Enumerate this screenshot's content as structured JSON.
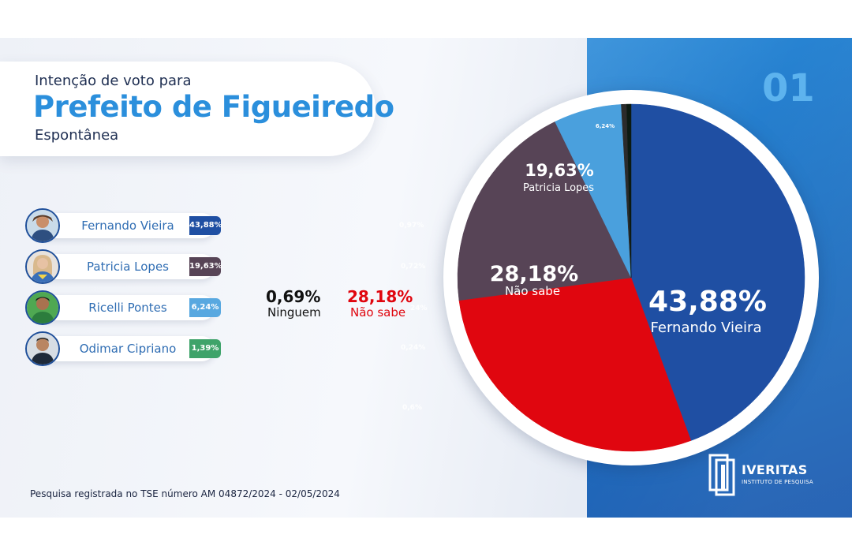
{
  "header": {
    "line1": "Intenção de voto para",
    "title": "Prefeito de Figueiredo",
    "subtitle": "Espontânea",
    "page_number": "01"
  },
  "candidates": [
    {
      "name": "Fernando Vieira",
      "value_label": "43,88%",
      "color": "#1f4fa3"
    },
    {
      "name": "Patricia Lopes",
      "value_label": "19,63%",
      "color": "#574456"
    },
    {
      "name": "Ricelli Pontes",
      "value_label": "6,24%",
      "color": "#58a8e0"
    },
    {
      "name": "Odimar Cipriano",
      "value_label": "1,39%",
      "color": "#3fa36a"
    }
  ],
  "ghost_labels": [
    "0,97%",
    "0,72%",
    "24%",
    "0,24%",
    "0,6%"
  ],
  "summary": {
    "ninguem_value": "0,69%",
    "ninguem_label": "Ninguem",
    "naosabe_value": "28,18%",
    "naosabe_label": "Não sabe"
  },
  "chart_data": {
    "type": "pie",
    "title": "",
    "slices": [
      {
        "label": "Fernando Vieira",
        "value": 43.88,
        "value_label": "43,88%",
        "color": "#1f4fa3"
      },
      {
        "label": "Não sabe",
        "value": 28.18,
        "value_label": "28,18%",
        "color": "#e0060f"
      },
      {
        "label": "Patricia Lopes",
        "value": 19.63,
        "value_label": "19,63%",
        "color": "#574456"
      },
      {
        "label": "",
        "value": 6.24,
        "value_label": "6,24%",
        "color": "#4aa0dd"
      },
      {
        "label": "",
        "value": 0.5,
        "value_label": "",
        "color": "#2b2b2b"
      },
      {
        "label": "",
        "value": 0.4,
        "value_label": "",
        "color": "#0c1a12"
      }
    ]
  },
  "footer": {
    "text": "Pesquisa registrada no TSE  número  AM 04872/2024 - 02/05/2024"
  },
  "logo": {
    "name": "IVERITAS",
    "tagline": "INSTITUTO DE PESQUISA"
  }
}
